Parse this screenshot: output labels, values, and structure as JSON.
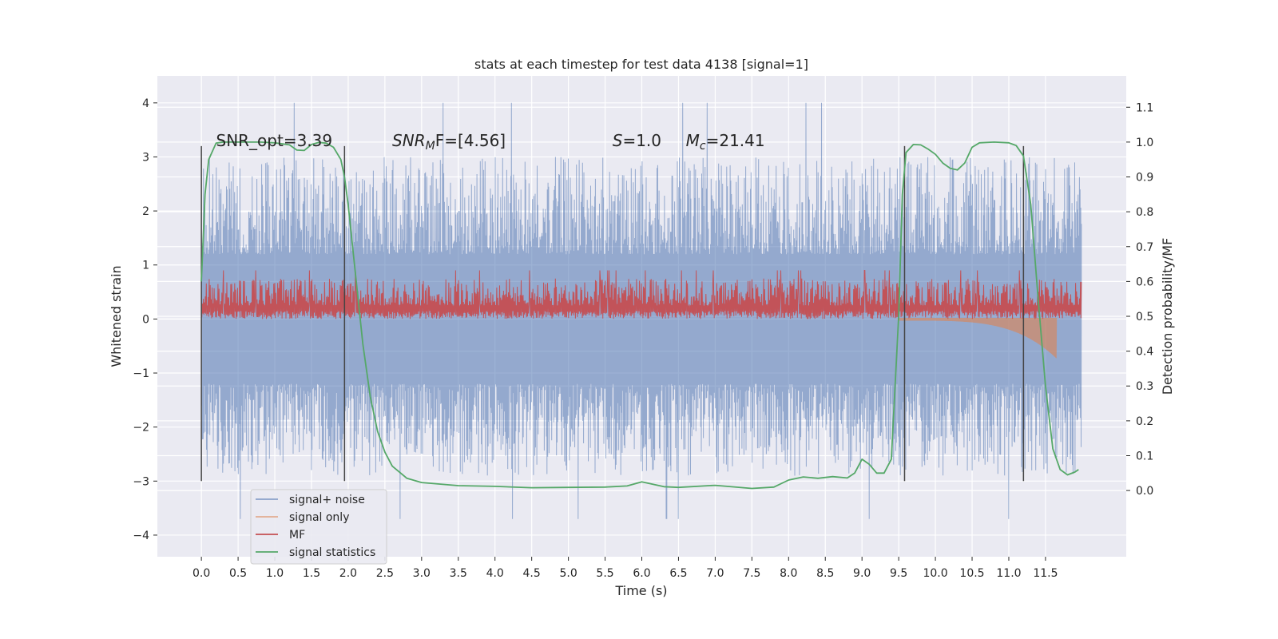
{
  "chart_data": {
    "type": "line",
    "title": "stats at each timestep for test data 4138 [signal=1]",
    "xlabel": "Time (s)",
    "ylabel": "Whitened strain",
    "y2label": "Detection probability/MF",
    "xlim": [
      -0.6,
      12.6
    ],
    "ylim": [
      -4.4,
      4.5
    ],
    "y2lim": [
      -0.19,
      1.19
    ],
    "xticks": [
      0.0,
      0.5,
      1.0,
      1.5,
      2.0,
      2.5,
      3.0,
      3.5,
      4.0,
      4.5,
      5.0,
      5.5,
      6.0,
      6.5,
      7.0,
      7.5,
      8.0,
      8.5,
      9.0,
      9.5,
      10.0,
      10.5,
      11.0,
      11.5
    ],
    "xticklabels": [
      "0.0",
      "0.5",
      "1.0",
      "1.5",
      "2.0",
      "2.5",
      "3.0",
      "3.5",
      "4.0",
      "4.5",
      "5.0",
      "5.5",
      "6.0",
      "6.5",
      "7.0",
      "7.5",
      "8.0",
      "8.5",
      "9.0",
      "9.5",
      "10.0",
      "10.5",
      "11.0",
      "11.5"
    ],
    "yticks": [
      -4,
      -3,
      -2,
      -1,
      0,
      1,
      2,
      3,
      4
    ],
    "yticklabels": [
      "−4",
      "−3",
      "−2",
      "−1",
      "0",
      "1",
      "2",
      "3",
      "4"
    ],
    "y2ticks": [
      0.0,
      0.1,
      0.2,
      0.3,
      0.4,
      0.5,
      0.6,
      0.7,
      0.8,
      0.9,
      1.0,
      1.1
    ],
    "y2ticklabels": [
      "0.0",
      "0.1",
      "0.2",
      "0.3",
      "0.4",
      "0.5",
      "0.6",
      "0.7",
      "0.8",
      "0.9",
      "1.0",
      "1.1"
    ],
    "grid": true,
    "legend_position": "lower-left",
    "annotations": [
      {
        "text": "SNR_opt=3.39",
        "x": 0.2,
        "y": 3.3
      },
      {
        "text": "SNR",
        "sub": "M",
        "rest": "F=[4.56]",
        "x": 2.6,
        "y": 3.3
      },
      {
        "text": "S",
        "sub": "",
        "rest": "=1.0",
        "x": 5.6,
        "y": 3.3
      },
      {
        "text": "M",
        "sub": "c",
        "rest": "=21.41",
        "x": 6.6,
        "y": 3.3
      }
    ],
    "vlines": [
      {
        "x": 0.0,
        "y": [
          -3.0,
          3.2
        ]
      },
      {
        "x": 1.95,
        "y": [
          -3.0,
          3.2
        ]
      },
      {
        "x": 9.58,
        "y": [
          -3.0,
          3.2
        ]
      },
      {
        "x": 11.2,
        "y": [
          -3.0,
          3.2
        ]
      }
    ],
    "series": [
      {
        "name": "signal+ noise",
        "color": "#4c72b0",
        "kind": "noise",
        "x_range": [
          0.0,
          11.99
        ],
        "amplitude": [
          -3.0,
          3.2
        ],
        "note_peak": [
          4.1,
          -3.9
        ]
      },
      {
        "name": "signal only",
        "color": "#dd8452",
        "kind": "chirp",
        "x_range": [
          9.5,
          11.65
        ],
        "min": -0.7
      },
      {
        "name": "MF",
        "color": "#c44e52",
        "kind": "mf",
        "x_range": [
          0.0,
          11.99
        ],
        "baseline": 0.0,
        "typical_max": 0.9
      },
      {
        "name": "signal statistics",
        "color": "#55a868",
        "axis": "right",
        "x": [
          0.0,
          0.05,
          0.1,
          0.2,
          0.3,
          0.5,
          0.8,
          1.0,
          1.2,
          1.3,
          1.4,
          1.5,
          1.6,
          1.7,
          1.8,
          1.9,
          1.95,
          2.0,
          2.1,
          2.2,
          2.3,
          2.4,
          2.5,
          2.6,
          2.8,
          3.0,
          3.5,
          4.0,
          4.5,
          5.0,
          5.5,
          5.8,
          6.0,
          6.3,
          6.5,
          7.0,
          7.5,
          7.8,
          8.0,
          8.2,
          8.4,
          8.6,
          8.8,
          8.9,
          9.0,
          9.1,
          9.2,
          9.3,
          9.4,
          9.5,
          9.55,
          9.6,
          9.7,
          9.8,
          9.9,
          10.0,
          10.1,
          10.2,
          10.3,
          10.4,
          10.5,
          10.6,
          10.8,
          11.0,
          11.1,
          11.2,
          11.3,
          11.4,
          11.5,
          11.6,
          11.7,
          11.8,
          11.9,
          11.95
        ],
        "y": [
          0.6,
          0.85,
          0.95,
          0.997,
          1.0,
          1.0,
          1.0,
          0.998,
          0.992,
          0.977,
          0.976,
          0.993,
          0.999,
          0.997,
          0.985,
          0.95,
          0.9,
          0.82,
          0.62,
          0.42,
          0.27,
          0.17,
          0.11,
          0.07,
          0.035,
          0.023,
          0.014,
          0.012,
          0.008,
          0.009,
          0.01,
          0.013,
          0.025,
          0.011,
          0.009,
          0.015,
          0.006,
          0.01,
          0.03,
          0.039,
          0.035,
          0.04,
          0.036,
          0.05,
          0.09,
          0.075,
          0.05,
          0.05,
          0.09,
          0.5,
          0.85,
          0.97,
          0.993,
          0.992,
          0.98,
          0.965,
          0.94,
          0.925,
          0.92,
          0.94,
          0.985,
          0.998,
          1.0,
          0.998,
          0.99,
          0.96,
          0.82,
          0.55,
          0.3,
          0.12,
          0.06,
          0.045,
          0.053,
          0.06
        ]
      }
    ]
  },
  "legend": {
    "items": [
      {
        "label": "signal+ noise",
        "color": "#4c72b0"
      },
      {
        "label": "signal only",
        "color": "#dd8452"
      },
      {
        "label": "MF",
        "color": "#c44e52"
      },
      {
        "label": "signal statistics",
        "color": "#55a868"
      }
    ]
  },
  "colors": {
    "plot_bg": "#eaeaf2",
    "grid": "#ffffff",
    "noise": "#4c72b0",
    "signal": "#dd8452",
    "mf": "#c44e52",
    "stat": "#55a868",
    "vline": "#444444"
  }
}
